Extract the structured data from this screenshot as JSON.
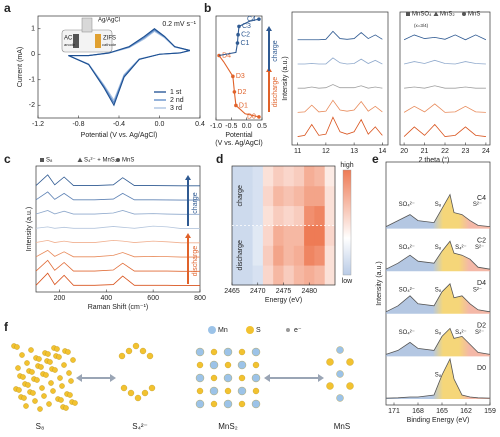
{
  "chart_data": [
    {
      "type": "line",
      "panel_label": "a",
      "xlabel": "Potential (V vs. Ag/AgCl)",
      "ylabel": "Current (mA)",
      "annotation": "0.2 mV s⁻¹",
      "inset_labels": [
        "Ag/AgCl",
        "AC",
        "anode",
        "ZIFS",
        "cathode"
      ],
      "x": [
        -0.9,
        -0.7,
        -0.5,
        -0.3,
        -0.15,
        -0.05,
        0.05,
        0.15,
        0.3,
        0.2,
        0.0,
        -0.2,
        -0.35,
        -0.45,
        -0.55,
        -0.7,
        -0.9
      ],
      "series": [
        {
          "name": "1 st",
          "color": "#1d4f91",
          "values": [
            -0.05,
            -0.05,
            0.05,
            0.3,
            0.7,
            1.0,
            0.7,
            0.3,
            0.15,
            0.05,
            0.0,
            -0.2,
            -0.9,
            -2.0,
            -1.3,
            -0.4,
            -0.05
          ]
        },
        {
          "name": "2 nd",
          "color": "#5a88c6",
          "values": [
            -0.05,
            -0.05,
            0.05,
            0.28,
            0.65,
            0.95,
            0.68,
            0.3,
            0.15,
            0.05,
            0.0,
            -0.2,
            -0.85,
            -1.9,
            -1.25,
            -0.4,
            -0.05
          ]
        },
        {
          "name": "3 rd",
          "color": "#a7c0e0",
          "values": [
            -0.05,
            -0.05,
            0.04,
            0.26,
            0.6,
            0.9,
            0.65,
            0.28,
            0.14,
            0.05,
            0.0,
            -0.18,
            -0.8,
            -1.8,
            -1.2,
            -0.38,
            -0.05
          ]
        }
      ],
      "xlim": [
        -1.2,
        0.4
      ],
      "ylim": [
        -2.5,
        1.5
      ],
      "xticks": [
        {
          "value": -1.2,
          "label": "-1.2"
        },
        {
          "value": -0.8,
          "label": "-0.8"
        },
        {
          "value": -0.4,
          "label": "-0.4"
        },
        {
          "value": 0,
          "label": "0.0"
        },
        0.4
      ],
      "yticks": [
        -2,
        -1,
        0,
        1
      ],
      "legend": "lower right"
    },
    {
      "type": "profile",
      "panel_label": "b",
      "xlabel": "Potential",
      "xlabel2": "(V vs. Ag/AgCl)",
      "series": [
        {
          "name": "discharge",
          "color": "#e0622a",
          "x": [
            0.4,
            -0.05,
            -0.35,
            -0.4,
            -0.45,
            -0.75,
            -0.9
          ],
          "values": [
            0.03,
            0.06,
            0.14,
            0.27,
            0.42,
            0.56,
            0.62
          ],
          "point_labels": [
            "D0",
            null,
            "D1",
            "D2",
            "D3",
            null,
            "D4"
          ]
        },
        {
          "name": "charge",
          "color": "#2f5a92",
          "x": [
            -0.9,
            -0.35,
            -0.3,
            -0.28,
            -0.25,
            0.1,
            0.4
          ],
          "values": [
            0.62,
            0.65,
            0.74,
            0.82,
            0.9,
            0.95,
            0.97
          ],
          "point_labels": [
            null,
            null,
            "C1",
            "C2",
            "C3",
            null,
            "C4"
          ]
        }
      ],
      "xlim": [
        -1.0,
        0.5
      ],
      "ylim": [
        0,
        1
      ],
      "xticks": [
        {
          "value": -1.0,
          "label": "-1.0"
        },
        {
          "value": -0.5,
          "label": "-0.5"
        },
        {
          "value": 0,
          "label": "0.0"
        },
        0.5
      ]
    },
    {
      "type": "ridgeline",
      "ylabel": "Intensity (a.u.)",
      "xlabel": "2 theta (°)",
      "x": [
        11,
        11.25,
        11.5,
        11.75,
        12,
        12.25,
        12.5,
        12.75,
        13,
        13.25,
        13.5,
        13.75,
        14
      ],
      "series": [
        {
          "color": "#d9541e",
          "values": [
            0.1,
            0.15,
            0.6,
            0.15,
            0.2,
            0.9,
            0.3,
            0.2,
            0.3,
            0.8,
            0.2,
            0.5,
            0.15
          ]
        },
        {
          "color": "#e88a5a",
          "values": [
            0.1,
            0.12,
            0.4,
            0.12,
            0.15,
            0.6,
            0.2,
            0.15,
            0.2,
            0.55,
            0.15,
            0.35,
            0.12
          ]
        },
        {
          "color": "#a0a0a0",
          "values": [
            0.1,
            0.1,
            0.15,
            0.1,
            0.12,
            0.25,
            0.12,
            0.12,
            0.12,
            0.2,
            0.1,
            0.15,
            0.1
          ]
        },
        {
          "color": "#8fa9cc",
          "values": [
            0.1,
            0.1,
            0.12,
            0.1,
            0.1,
            0.35,
            0.15,
            0.1,
            0.12,
            0.3,
            0.12,
            0.25,
            0.1
          ]
        },
        {
          "color": "#2f5a92",
          "values": [
            0.1,
            0.1,
            0.1,
            0.1,
            0.12,
            0.45,
            0.15,
            0.12,
            0.15,
            0.4,
            0.15,
            0.3,
            0.12
          ]
        }
      ],
      "xlim": [
        10.8,
        14.2
      ],
      "xticks": [
        11,
        12,
        13,
        14
      ]
    },
    {
      "type": "ridgeline",
      "legend_labels": [
        "MnSO₄",
        "MnS₂",
        "MnS"
      ],
      "note": "(x=3/4)",
      "x": [
        20,
        20.5,
        21,
        21.5,
        22,
        22.5,
        23,
        23.5,
        24
      ],
      "series": [
        {
          "color": "#d9541e",
          "values": [
            0.1,
            0.5,
            0.15,
            0.6,
            0.1,
            0.15,
            0.5,
            0.15,
            0.1
          ]
        },
        {
          "color": "#e88a5a",
          "values": [
            0.1,
            0.35,
            0.12,
            0.45,
            0.1,
            0.12,
            0.35,
            0.12,
            0.1
          ]
        },
        {
          "color": "#a0a0a0",
          "values": [
            0.1,
            0.15,
            0.1,
            0.2,
            0.1,
            0.1,
            0.15,
            0.1,
            0.1
          ]
        },
        {
          "color": "#8fa9cc",
          "values": [
            0.1,
            0.2,
            0.12,
            0.25,
            0.12,
            0.1,
            0.2,
            0.12,
            0.1
          ]
        },
        {
          "color": "#2f5a92",
          "values": [
            0.1,
            0.3,
            0.15,
            0.2,
            0.12,
            0.3,
            0.1,
            0.3,
            0.1
          ]
        }
      ],
      "xlim": [
        19.8,
        24.2
      ],
      "xticks": [
        20,
        21,
        22,
        23,
        24
      ]
    },
    {
      "type": "ridgeline",
      "panel_label": "c",
      "xlabel": "Raman Shift (cm⁻¹)",
      "ylabel": "Intensity (a.u.)",
      "legend_labels": [
        "S₈",
        "S₄²⁻ + MnS₂",
        "MnS"
      ],
      "arrow_labels": [
        "discharge",
        "charge"
      ],
      "x": [
        100,
        150,
        180,
        220,
        260,
        350,
        430,
        470,
        520,
        600,
        660,
        720,
        800
      ],
      "series": [
        {
          "color": "#d9541e",
          "values": [
            0.05,
            0.9,
            0.1,
            0.75,
            0.05,
            0.05,
            0.1,
            0.7,
            0.05,
            0.05,
            0.05,
            0.03,
            0.03
          ]
        },
        {
          "color": "#e06a35",
          "values": [
            0.05,
            0.8,
            0.1,
            0.65,
            0.05,
            0.05,
            0.12,
            0.6,
            0.05,
            0.05,
            0.05,
            0.03,
            0.03
          ]
        },
        {
          "color": "#e88a5a",
          "values": [
            0.05,
            0.5,
            0.08,
            0.4,
            0.05,
            0.05,
            0.15,
            0.35,
            0.05,
            0.08,
            0.06,
            0.03,
            0.03
          ]
        },
        {
          "color": "#f0b090",
          "values": [
            0.05,
            0.2,
            0.05,
            0.15,
            0.05,
            0.05,
            0.2,
            0.15,
            0.05,
            0.15,
            0.1,
            0.03,
            0.03
          ]
        },
        {
          "color": "#b5c6dd",
          "values": [
            0.05,
            0.15,
            0.05,
            0.12,
            0.05,
            0.05,
            0.18,
            0.12,
            0.05,
            0.2,
            0.15,
            0.03,
            0.03
          ]
        },
        {
          "color": "#8fa9cc",
          "values": [
            0.05,
            0.3,
            0.06,
            0.25,
            0.05,
            0.05,
            0.12,
            0.3,
            0.05,
            0.08,
            0.05,
            0.03,
            0.03
          ]
        },
        {
          "color": "#5f83b5",
          "values": [
            0.05,
            0.6,
            0.08,
            0.5,
            0.05,
            0.05,
            0.1,
            0.5,
            0.05,
            0.05,
            0.04,
            0.03,
            0.03
          ]
        },
        {
          "color": "#2f5a92",
          "values": [
            0.05,
            0.8,
            0.1,
            0.65,
            0.05,
            0.05,
            0.1,
            0.6,
            0.05,
            0.05,
            0.04,
            0.03,
            0.03
          ]
        }
      ],
      "xlim": [
        100,
        800
      ],
      "xticks": [
        200,
        400,
        600,
        800
      ]
    },
    {
      "type": "heatmap",
      "panel_label": "d",
      "xlabel": "Energy (eV)",
      "row_group_labels": [
        "discharge",
        "charge"
      ],
      "colorbar_labels": [
        "low",
        "high"
      ],
      "x": [
        2466,
        2468,
        2470,
        2472,
        2474,
        2476,
        2478,
        2480,
        2482,
        2484
      ],
      "z": [
        [
          0.1,
          0.1,
          0.15,
          0.55,
          0.7,
          0.6,
          0.7,
          0.75,
          0.7,
          0.5
        ],
        [
          0.1,
          0.1,
          0.2,
          0.6,
          0.8,
          0.7,
          0.75,
          0.95,
          0.9,
          0.5
        ],
        [
          0.1,
          0.1,
          0.2,
          0.55,
          0.75,
          0.7,
          0.7,
          1.0,
          1.0,
          0.55
        ],
        [
          0.1,
          0.1,
          0.15,
          0.5,
          0.6,
          0.55,
          0.6,
          0.9,
          0.95,
          0.5
        ],
        [
          0.1,
          0.1,
          0.15,
          0.55,
          0.7,
          0.65,
          0.7,
          0.8,
          0.8,
          0.5
        ],
        [
          0.1,
          0.1,
          0.15,
          0.5,
          0.6,
          0.55,
          0.6,
          0.75,
          0.7,
          0.45
        ]
      ],
      "xlim": [
        2465,
        2485
      ],
      "xticks": [
        2465,
        2470,
        2475,
        2480
      ]
    },
    {
      "type": "ridgeline",
      "panel_label": "e",
      "xlabel": "Binding Energy (eV)",
      "ylabel": "Intensity (a.u.)",
      "x": [
        172,
        170.5,
        169,
        168,
        166,
        165,
        164,
        163.5,
        162.5,
        161.5,
        160.5,
        159
      ],
      "series": [
        {
          "name": "D0",
          "color": "#555555",
          "values": [
            0.02,
            0.03,
            0.05,
            0.05,
            0.1,
            0.6,
            1.0,
            0.5,
            0.1,
            0.05,
            0.03,
            0.02
          ],
          "peak_labels": [
            "S₈"
          ]
        },
        {
          "name": "D2",
          "color": "#555555",
          "values": [
            0.05,
            0.15,
            0.35,
            0.2,
            0.15,
            0.5,
            0.7,
            0.45,
            0.5,
            0.3,
            0.1,
            0.05
          ],
          "peak_labels": [
            "SO₄²⁻",
            "S₈",
            "S₄²⁻",
            "S²⁻"
          ]
        },
        {
          "name": "D4",
          "color": "#555555",
          "values": [
            0.05,
            0.2,
            0.45,
            0.25,
            0.2,
            0.55,
            0.75,
            0.4,
            0.45,
            0.25,
            0.1,
            0.05
          ],
          "peak_labels": [
            "SO₄²⁻",
            "S₈",
            "S²⁻"
          ]
        },
        {
          "name": "C2",
          "color": "#555555",
          "values": [
            0.05,
            0.2,
            0.4,
            0.25,
            0.2,
            0.5,
            0.75,
            0.45,
            0.4,
            0.3,
            0.1,
            0.05
          ],
          "peak_labels": [
            "SO₄²⁻",
            "S₈",
            "S₄²⁻",
            "S²⁻"
          ]
        },
        {
          "name": "C4",
          "color": "#555555",
          "values": [
            0.05,
            0.2,
            0.35,
            0.2,
            0.15,
            0.5,
            0.85,
            0.4,
            0.35,
            0.2,
            0.08,
            0.05
          ],
          "peak_labels": [
            "SO₄²⁻",
            "S₈",
            "S²⁻"
          ]
        }
      ],
      "xlim": [
        172,
        159
      ],
      "xticks": [
        171,
        168,
        165,
        162,
        159
      ]
    }
  ],
  "diagram": {
    "panel_label": "f",
    "legend": [
      "Mn",
      "S",
      "e⁻"
    ],
    "species": [
      "S₈",
      "S₄²⁻",
      "MnS₂",
      "MnS"
    ]
  }
}
